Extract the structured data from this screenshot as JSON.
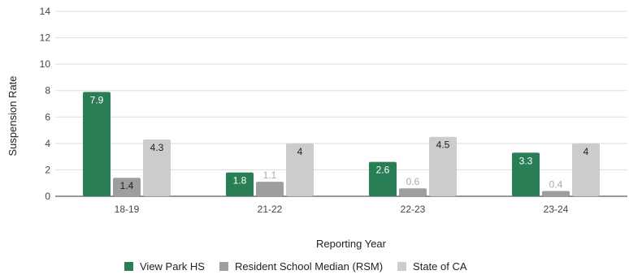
{
  "chart_data": {
    "type": "bar",
    "xlabel": "Reporting Year",
    "ylabel": "Suspension Rate",
    "ylim": [
      0,
      14
    ],
    "yticks": [
      0,
      2,
      4,
      6,
      8,
      10,
      12,
      14
    ],
    "grid": true,
    "legend_position": "bottom",
    "categories": [
      "18-19",
      "21-22",
      "22-23",
      "23-24"
    ],
    "series": [
      {
        "name": "View Park HS",
        "color": "#2a7e56",
        "values": [
          7.9,
          1.8,
          2.6,
          3.3
        ],
        "labels": [
          "7.9",
          "1.8",
          "2.6",
          "3.3"
        ]
      },
      {
        "name": "Resident School Median (RSM)",
        "color": "#9e9e9e",
        "values": [
          1.4,
          1.1,
          0.6,
          0.4
        ],
        "labels": [
          "1.4",
          "1.1",
          "0.6",
          "0.4"
        ]
      },
      {
        "name": "State of CA",
        "color": "#cccccc",
        "values": [
          4.3,
          4,
          4.5,
          4
        ],
        "labels": [
          "4.3",
          "4",
          "4.5",
          "4"
        ]
      }
    ]
  }
}
